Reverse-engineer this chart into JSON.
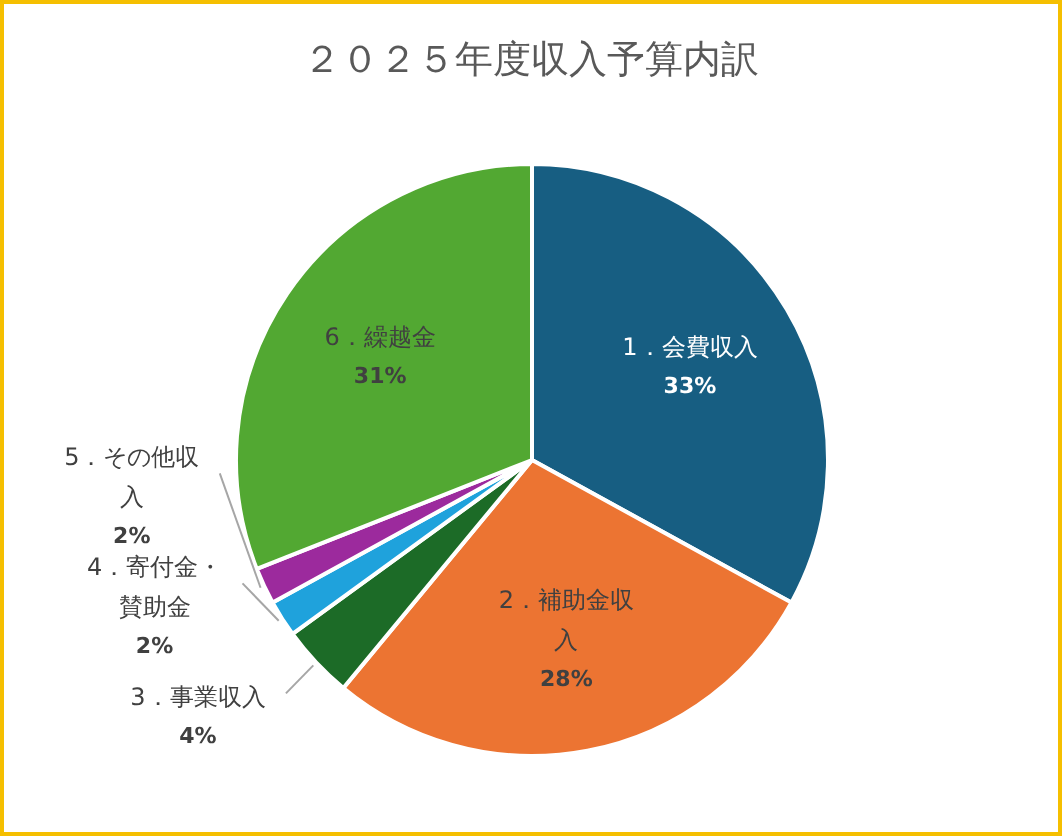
{
  "chart_data": {
    "type": "pie",
    "title": "２０２５年度収入予算内訳",
    "categories": [
      "1．会費収入",
      "2．補助金収入",
      "3．事業収入",
      "4．寄付金・賛助金",
      "5．その他収入",
      "6．繰越金"
    ],
    "values": [
      33,
      28,
      4,
      2,
      2,
      31
    ],
    "colors": [
      "#175e82",
      "#ec7432",
      "#1c6b27",
      "#1fa2dc",
      "#9c2a9d",
      "#52a832"
    ],
    "value_labels": [
      "33%",
      "28%",
      "4%",
      "2%",
      "2%",
      "31%"
    ]
  }
}
